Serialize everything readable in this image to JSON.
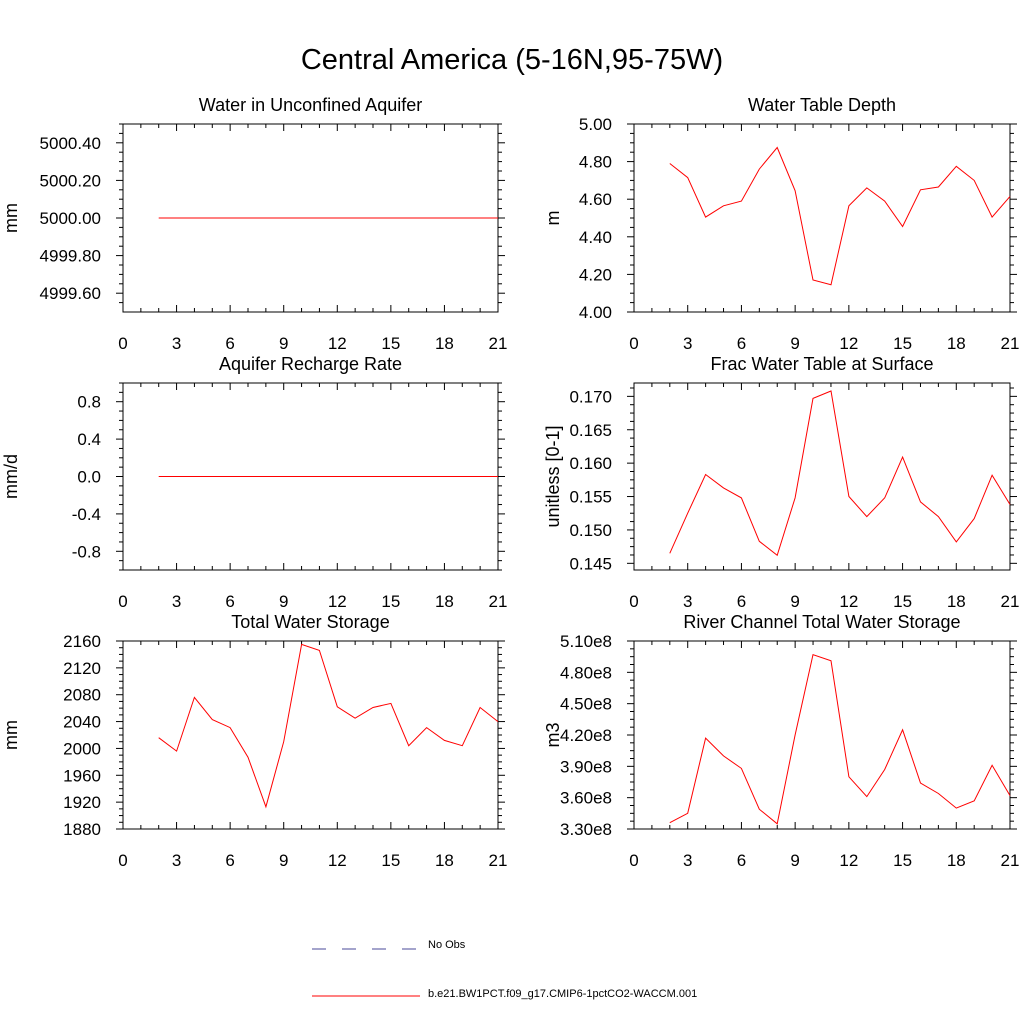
{
  "title": "Central America (5-16N,95-75W)",
  "colors": {
    "series": "#ff0000",
    "obs": "#4a4a9a",
    "axis": "#000000"
  },
  "legend": [
    {
      "label": "No Obs",
      "style": "dashed",
      "color": "#4a4a9a"
    },
    {
      "label": "b.e21.BW1PCT.f09_g17.CMIP6-1pctCO2-WACCM.001",
      "style": "solid",
      "color": "#ff0000"
    }
  ],
  "chart_data": [
    {
      "type": "line",
      "title": "Water in Unconfined Aquifer",
      "xlabel": "",
      "ylabel": "mm",
      "xlim": [
        0,
        21
      ],
      "ylim": [
        4999.5,
        5000.5
      ],
      "xticks": [
        0,
        3,
        6,
        9,
        12,
        15,
        18,
        21
      ],
      "xtick_labels": [
        "0",
        "3",
        "6",
        "9",
        "12",
        "15",
        "18",
        "21"
      ],
      "yticks": [
        4999.6,
        4999.8,
        5000.0,
        5000.2,
        5000.4
      ],
      "ytick_labels": [
        "4999.60",
        "4999.80",
        "5000.00",
        "5000.20",
        "5000.40"
      ],
      "series": [
        {
          "name": "b.e21.BW1PCT.f09_g17.CMIP6-1pctCO2-WACCM.001",
          "x": [
            2,
            3,
            4,
            5,
            6,
            7,
            8,
            9,
            10,
            11,
            12,
            13,
            14,
            15,
            16,
            17,
            18,
            19,
            20,
            21
          ],
          "y": [
            5000,
            5000,
            5000,
            5000,
            5000,
            5000,
            5000,
            5000,
            5000,
            5000,
            5000,
            5000,
            5000,
            5000,
            5000,
            5000,
            5000,
            5000,
            5000,
            5000
          ]
        }
      ]
    },
    {
      "type": "line",
      "title": "Water Table Depth",
      "xlabel": "",
      "ylabel": "m",
      "xlim": [
        0,
        21
      ],
      "ylim": [
        4.0,
        5.0
      ],
      "xticks": [
        0,
        3,
        6,
        9,
        12,
        15,
        18,
        21
      ],
      "xtick_labels": [
        "0",
        "3",
        "6",
        "9",
        "12",
        "15",
        "18",
        "21"
      ],
      "yticks": [
        4.0,
        4.2,
        4.4,
        4.6,
        4.8,
        5.0
      ],
      "ytick_labels": [
        "4.00",
        "4.20",
        "4.40",
        "4.60",
        "4.80",
        "5.00"
      ],
      "series": [
        {
          "name": "b.e21.BW1PCT.f09_g17.CMIP6-1pctCO2-WACCM.001",
          "x": [
            2,
            3,
            4,
            5,
            6,
            7,
            8,
            9,
            10,
            11,
            12,
            13,
            14,
            15,
            16,
            17,
            18,
            19,
            20,
            21
          ],
          "y": [
            4.79,
            4.715,
            4.505,
            4.565,
            4.59,
            4.76,
            4.875,
            4.645,
            4.17,
            4.145,
            4.565,
            4.66,
            4.59,
            4.455,
            4.65,
            4.665,
            4.775,
            4.7,
            4.505,
            4.615
          ]
        }
      ]
    },
    {
      "type": "line",
      "title": "Aquifer Recharge Rate",
      "xlabel": "",
      "ylabel": "mm/d",
      "xlim": [
        0,
        21
      ],
      "ylim": [
        -1.0,
        1.0
      ],
      "xticks": [
        0,
        3,
        6,
        9,
        12,
        15,
        18,
        21
      ],
      "xtick_labels": [
        "0",
        "3",
        "6",
        "9",
        "12",
        "15",
        "18",
        "21"
      ],
      "yticks": [
        -0.8,
        -0.4,
        0.0,
        0.4,
        0.8
      ],
      "ytick_labels": [
        "-0.8",
        "-0.4",
        "0.0",
        "0.4",
        "0.8"
      ],
      "series": [
        {
          "name": "b.e21.BW1PCT.f09_g17.CMIP6-1pctCO2-WACCM.001",
          "x": [
            2,
            3,
            4,
            5,
            6,
            7,
            8,
            9,
            10,
            11,
            12,
            13,
            14,
            15,
            16,
            17,
            18,
            19,
            20,
            21
          ],
          "y": [
            0,
            0,
            0,
            0,
            0,
            0,
            0,
            0,
            0,
            0,
            0,
            0,
            0,
            0,
            0,
            0,
            0,
            0,
            0,
            0
          ]
        }
      ]
    },
    {
      "type": "line",
      "title": "Frac Water Table at Surface",
      "xlabel": "",
      "ylabel": "unitless [0-1]",
      "xlim": [
        0,
        21
      ],
      "ylim": [
        0.144,
        0.172
      ],
      "xticks": [
        0,
        3,
        6,
        9,
        12,
        15,
        18,
        21
      ],
      "xtick_labels": [
        "0",
        "3",
        "6",
        "9",
        "12",
        "15",
        "18",
        "21"
      ],
      "yticks": [
        0.145,
        0.15,
        0.155,
        0.16,
        0.165,
        0.17
      ],
      "ytick_labels": [
        "0.145",
        "0.150",
        "0.155",
        "0.160",
        "0.165",
        "0.170"
      ],
      "series": [
        {
          "name": "b.e21.BW1PCT.f09_g17.CMIP6-1pctCO2-WACCM.001",
          "x": [
            2,
            3,
            4,
            5,
            6,
            7,
            8,
            9,
            10,
            11,
            12,
            13,
            14,
            15,
            16,
            17,
            18,
            19,
            20,
            21
          ],
          "y": [
            0.1465,
            0.1525,
            0.1583,
            0.1563,
            0.1548,
            0.1483,
            0.1462,
            0.1548,
            0.1697,
            0.1708,
            0.155,
            0.152,
            0.1548,
            0.1609,
            0.1542,
            0.152,
            0.1482,
            0.1517,
            0.1582,
            0.1538
          ]
        }
      ]
    },
    {
      "type": "line",
      "title": "Total Water Storage",
      "xlabel": "",
      "ylabel": "mm",
      "xlim": [
        0,
        21
      ],
      "ylim": [
        1880,
        2160
      ],
      "xticks": [
        0,
        3,
        6,
        9,
        12,
        15,
        18,
        21
      ],
      "xtick_labels": [
        "0",
        "3",
        "6",
        "9",
        "12",
        "15",
        "18",
        "21"
      ],
      "yticks": [
        1880,
        1920,
        1960,
        2000,
        2040,
        2080,
        2120,
        2160
      ],
      "ytick_labels": [
        "1880",
        "1920",
        "1960",
        "2000",
        "2040",
        "2080",
        "2120",
        "2160"
      ],
      "series": [
        {
          "name": "b.e21.BW1PCT.f09_g17.CMIP6-1pctCO2-WACCM.001",
          "x": [
            2,
            3,
            4,
            5,
            6,
            7,
            8,
            9,
            10,
            11,
            12,
            13,
            14,
            15,
            16,
            17,
            18,
            19,
            20,
            21
          ],
          "y": [
            2016,
            1996,
            2076,
            2043,
            2031,
            1987,
            1913,
            2010,
            2155,
            2146,
            2062,
            2045,
            2061,
            2067,
            2004,
            2031,
            2012,
            2004,
            2061,
            2040
          ]
        }
      ]
    },
    {
      "type": "line",
      "title": "River Channel Total Water Storage",
      "xlabel": "",
      "ylabel": "m3",
      "xlim": [
        0,
        21
      ],
      "ylim": [
        330000000,
        510000000
      ],
      "xticks": [
        0,
        3,
        6,
        9,
        12,
        15,
        18,
        21
      ],
      "xtick_labels": [
        "0",
        "3",
        "6",
        "9",
        "12",
        "15",
        "18",
        "21"
      ],
      "yticks": [
        330000000,
        360000000,
        390000000,
        420000000,
        450000000,
        480000000,
        510000000
      ],
      "ytick_labels": [
        "3.30e8",
        "3.60e8",
        "3.90e8",
        "4.20e8",
        "4.50e8",
        "4.80e8",
        "5.10e8"
      ],
      "series": [
        {
          "name": "b.e21.BW1PCT.f09_g17.CMIP6-1pctCO2-WACCM.001",
          "x": [
            2,
            3,
            4,
            5,
            6,
            7,
            8,
            9,
            10,
            11,
            12,
            13,
            14,
            15,
            16,
            17,
            18,
            19,
            20,
            21
          ],
          "y": [
            336000000,
            345000000,
            417000000,
            400000000,
            388000000,
            349000000,
            335000000,
            420000000,
            497000000,
            491000000,
            380000000,
            361000000,
            387000000,
            425000000,
            374000000,
            364000000,
            350000000,
            357000000,
            391000000,
            362000000
          ]
        }
      ]
    }
  ]
}
